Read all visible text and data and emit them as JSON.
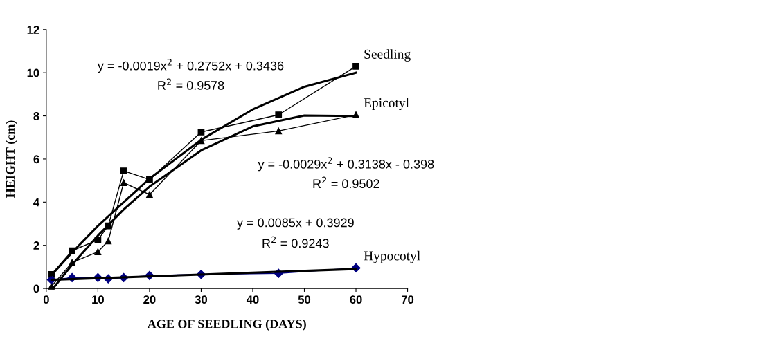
{
  "chart_data": {
    "type": "line",
    "xlabel": "AGE OF SEEDLING (DAYS)",
    "ylabel": "HEIGHT (cm)",
    "xlim": [
      0,
      70
    ],
    "xticks": [
      0,
      10,
      20,
      30,
      40,
      50,
      60,
      70
    ],
    "ylim": [
      0,
      12
    ],
    "yticks": [
      0,
      2,
      4,
      6,
      8,
      10,
      12
    ],
    "grid": false,
    "legend": false,
    "series": [
      {
        "name": "Seedling",
        "color": "#000000",
        "marker": "square",
        "x": [
          1,
          5,
          10,
          12,
          15,
          20,
          30,
          45,
          60
        ],
        "values": [
          0.65,
          1.75,
          2.25,
          2.9,
          5.45,
          5.05,
          7.25,
          8.05,
          10.3
        ]
      },
      {
        "name": "Epicotyl",
        "color": "#000000",
        "marker": "triangle",
        "x": [
          1,
          5,
          10,
          12,
          15,
          20,
          30,
          45,
          60
        ],
        "values": [
          0.1,
          1.2,
          1.7,
          2.2,
          4.9,
          4.35,
          6.85,
          7.3,
          8.05
        ]
      },
      {
        "name": "Hypocotyl",
        "color": "#000080",
        "marker": "diamond",
        "x": [
          1,
          5,
          10,
          12,
          15,
          20,
          30,
          45,
          60
        ],
        "values": [
          0.4,
          0.5,
          0.5,
          0.45,
          0.5,
          0.6,
          0.65,
          0.7,
          0.95
        ]
      },
      {
        "color": "#000000",
        "marker": "none",
        "x": [
          1,
          5,
          10,
          15,
          20,
          30,
          40,
          50,
          60
        ],
        "values": [
          0.62,
          1.67,
          2.9,
          4.0,
          5.09,
          6.89,
          8.3,
          9.35,
          10.0
        ]
      },
      {
        "color": "#000000",
        "marker": "none",
        "x": [
          1.3,
          5,
          10,
          15,
          20,
          30,
          40,
          50,
          60
        ],
        "values": [
          0,
          1.1,
          2.45,
          3.66,
          4.72,
          6.4,
          7.51,
          8.02,
          7.99
        ]
      },
      {
        "color": "#000000",
        "marker": "none",
        "x": [
          1,
          60
        ],
        "values": [
          0.4,
          0.9
        ]
      }
    ],
    "annotations": [
      "y = -0.0019x$^{2}$ + 0.2752x + 0.3436",
      "R$^{2}$ = 0.9578",
      "y = -0.0029x$^{2}$ + 0.3138x - 0.398",
      "R$^{2}$ = 0.9502",
      "y = 0.0085x + 0.3929",
      "R$^{2}$ = 0.9243"
    ]
  }
}
